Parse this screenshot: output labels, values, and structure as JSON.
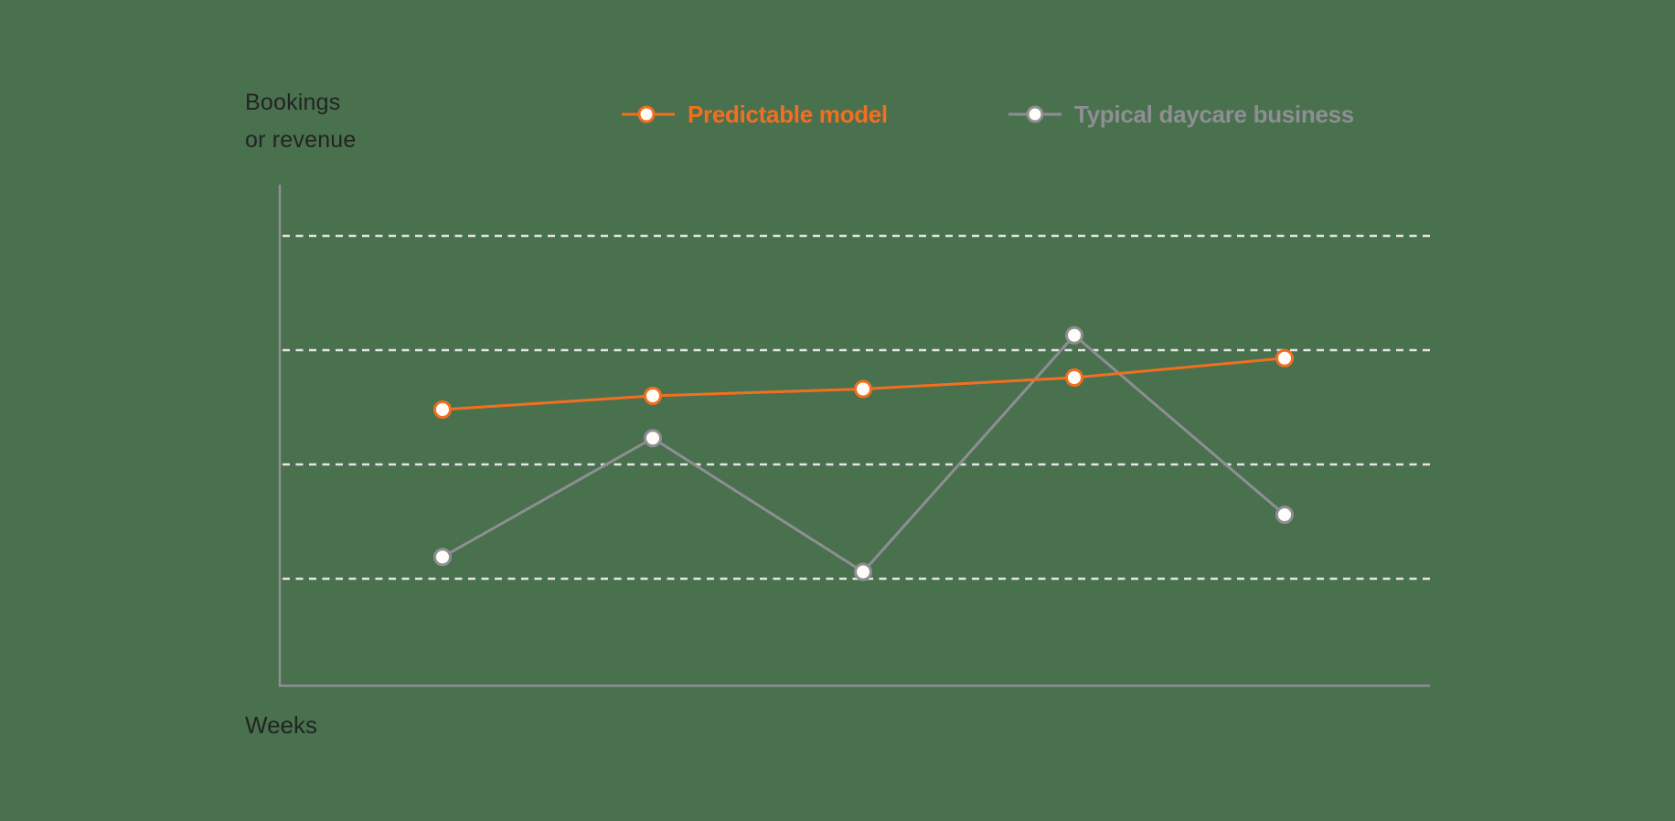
{
  "colors": {
    "background": "#49714E",
    "text": "#232323",
    "axis": "#8E8E93",
    "grid": "#E6E6E6",
    "marker_fill": "#FFFDF8"
  },
  "chart_data": {
    "type": "line",
    "title": "",
    "xlabel": "Weeks",
    "ylabel": "Bookings or revenue",
    "ylabel_lines": [
      "Bookings",
      "or revenue"
    ],
    "x": [
      1,
      2,
      3,
      4,
      5
    ],
    "ylim": [
      0,
      4.4
    ],
    "grid": true,
    "grid_style": "dashed horizontal",
    "gridlines_at": [
      1,
      2,
      3,
      4
    ],
    "tick_labels_shown": false,
    "legend_position": "top",
    "series": [
      {
        "name": "Predictable model",
        "color": "#F26F21",
        "values": [
          2.48,
          2.6,
          2.66,
          2.76,
          2.93
        ]
      },
      {
        "name": "Typical daycare business",
        "color": "#8E8E93",
        "values": [
          1.19,
          2.23,
          1.06,
          3.13,
          1.56
        ]
      }
    ]
  },
  "labels": {
    "ylabel_line1": "Bookings",
    "ylabel_line2": "or revenue",
    "xlabel": "Weeks",
    "legend": [
      {
        "label": "Predictable model",
        "color": "#F26F21"
      },
      {
        "label": "Typical daycare business",
        "color": "#8E8E93"
      }
    ]
  }
}
